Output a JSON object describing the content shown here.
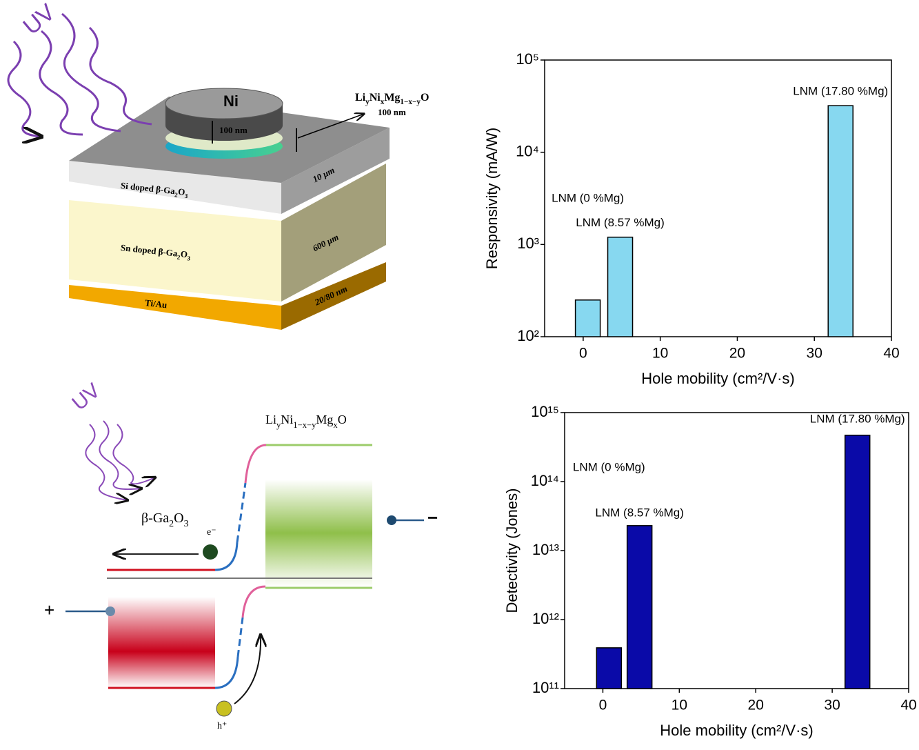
{
  "chart_data": [
    {
      "type": "bar",
      "yscale": "log",
      "ylabel": "Responsivity (mA/W)",
      "xlabel": "Hole mobility (cm²/V·s)",
      "x": [
        0.6,
        4.8,
        33.4
      ],
      "values": [
        250,
        1200,
        32000
      ],
      "bar_labels": [
        "LNM (0 %Mg)",
        "LNM (8.57 %Mg)",
        "LNM (17.80 %Mg)"
      ],
      "color": "#87d8f0",
      "xlim": [
        -5,
        40
      ],
      "xticks": [
        0,
        10,
        20,
        30,
        40
      ],
      "ylim": [
        100,
        100000
      ],
      "yticks": [
        {
          "value": 100,
          "label": "10²"
        },
        {
          "value": 1000,
          "label": "10³"
        },
        {
          "value": 10000,
          "label": "10⁴"
        },
        {
          "value": 100000,
          "label": "10⁵"
        }
      ]
    },
    {
      "type": "bar",
      "yscale": "log",
      "ylabel": "Detectivity (Jones)",
      "xlabel": "Hole mobility (cm²/V·s)",
      "x": [
        0.8,
        4.8,
        33.3
      ],
      "values": [
        390000000000,
        23000000000000,
        470000000000000
      ],
      "bar_labels": [
        "LNM (0 %Mg)",
        "LNM (8.57 %Mg)",
        "LNM (17.80 %Mg)"
      ],
      "color": "#0a0aa8",
      "xlim": [
        -5,
        40
      ],
      "xticks": [
        0,
        10,
        20,
        30,
        40
      ],
      "ylim": [
        100000000000,
        1000000000000000
      ],
      "yticks": [
        {
          "value": 100000000000,
          "label": "10¹¹"
        },
        {
          "value": 1000000000000,
          "label": "10¹²"
        },
        {
          "value": 10000000000000,
          "label": "10¹³"
        },
        {
          "value": 100000000000000,
          "label": "10¹⁴"
        },
        {
          "value": 1000000000000000,
          "label": "10¹⁵"
        }
      ]
    }
  ],
  "device": {
    "uv": "UV",
    "contact": "Ni",
    "contact_thickness": "100 nm",
    "film": [
      "Li",
      "y",
      "Ni",
      "x",
      "Mg",
      "1−x−y",
      "O"
    ],
    "film_thickness": "100 nm",
    "layer1": [
      "Si doped β-Ga",
      "2",
      "O",
      "3"
    ],
    "layer1_thickness": "10 μm",
    "layer2": [
      "Sn doped β-Ga",
      "2",
      "O",
      "3"
    ],
    "layer2_thickness": "600 μm",
    "electrode": "Ti/Au",
    "electrode_thickness": "20/80 nm"
  },
  "band_diagram": {
    "uv": "UV",
    "p_side": [
      "Li",
      "y",
      "Ni",
      "1−x−y",
      "Mg",
      "x",
      "O"
    ],
    "n_side": [
      "β-Ga",
      "2",
      "O",
      "3"
    ],
    "electron": "e⁻",
    "hole": "h⁺",
    "plus": "+",
    "minus": "−"
  }
}
